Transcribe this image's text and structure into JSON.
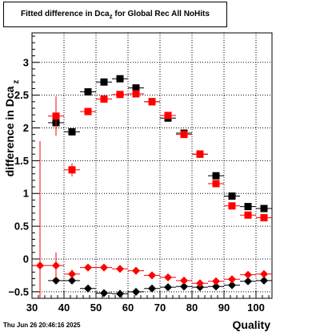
{
  "title": "Fitted difference in Dca_z  for Global Rec All NoHits",
  "timestamp": "Thu Jun 26 20:46:16 2025",
  "chart_data": {
    "type": "scatter",
    "title": "Fitted difference in Dca_z  for Global Rec All NoHits",
    "xlabel": "Quality",
    "ylabel": "difference in Dca_z",
    "xlim": [
      30,
      105
    ],
    "ylim": [
      -0.6,
      3.45
    ],
    "grid": true,
    "xticks": [
      30,
      40,
      50,
      60,
      70,
      80,
      90,
      100
    ],
    "yticks": [
      -0.5,
      0,
      0.5,
      1,
      1.5,
      2,
      2.5,
      3
    ],
    "ytick_labels": [
      "−0.5",
      "0",
      "0.5",
      "1",
      "1.5",
      "2",
      "2.5",
      "3"
    ],
    "x": [
      32.5,
      37.5,
      42.5,
      47.5,
      52.5,
      57.5,
      62.5,
      67.5,
      72.5,
      77.5,
      82.5,
      87.5,
      92.5,
      97.5,
      102.5
    ],
    "series": [
      {
        "marker": "square",
        "color": "#000000",
        "values": [
          null,
          2.08,
          1.94,
          2.55,
          2.7,
          2.75,
          2.61,
          2.4,
          2.15,
          1.92,
          1.6,
          1.27,
          0.96,
          0.8,
          0.77
        ],
        "errors": [
          null,
          0.06,
          0.05,
          0.03,
          0.03,
          0.03,
          0.03,
          0.03,
          0.03,
          0.03,
          0.03,
          0.03,
          0.03,
          0.03,
          0.03
        ]
      },
      {
        "marker": "square",
        "color": "#ff0000",
        "values": [
          null,
          2.18,
          1.36,
          2.25,
          2.44,
          2.51,
          2.52,
          2.4,
          2.19,
          1.9,
          1.6,
          1.15,
          0.81,
          0.67,
          0.63
        ],
        "errors": [
          null,
          0.3,
          0.1,
          0.04,
          0.03,
          0.03,
          0.03,
          0.03,
          0.03,
          0.03,
          0.03,
          0.03,
          0.03,
          0.03,
          0.03
        ]
      },
      {
        "marker": "diamond",
        "color": "#000000",
        "values": [
          null,
          -0.33,
          -0.33,
          -0.45,
          -0.52,
          -0.53,
          -0.5,
          -0.45,
          -0.43,
          -0.42,
          -0.43,
          -0.42,
          -0.4,
          -0.34,
          -0.33
        ],
        "errors": [
          null,
          0.05,
          0.03,
          0.02,
          0.02,
          0.02,
          0.02,
          0.02,
          0.02,
          0.02,
          0.02,
          0.02,
          0.02,
          0.02,
          0.02
        ]
      },
      {
        "marker": "diamond",
        "color": "#ff0000",
        "values": [
          -0.1,
          -0.1,
          -0.23,
          -0.13,
          -0.13,
          -0.15,
          -0.18,
          -0.25,
          -0.28,
          -0.33,
          -0.37,
          -0.34,
          -0.31,
          -0.24,
          -0.23
        ],
        "errors": [
          1.9,
          0.2,
          0.07,
          0.03,
          0.03,
          0.03,
          0.03,
          0.03,
          0.03,
          0.03,
          0.03,
          0.03,
          0.03,
          0.03,
          0.03
        ]
      }
    ]
  }
}
